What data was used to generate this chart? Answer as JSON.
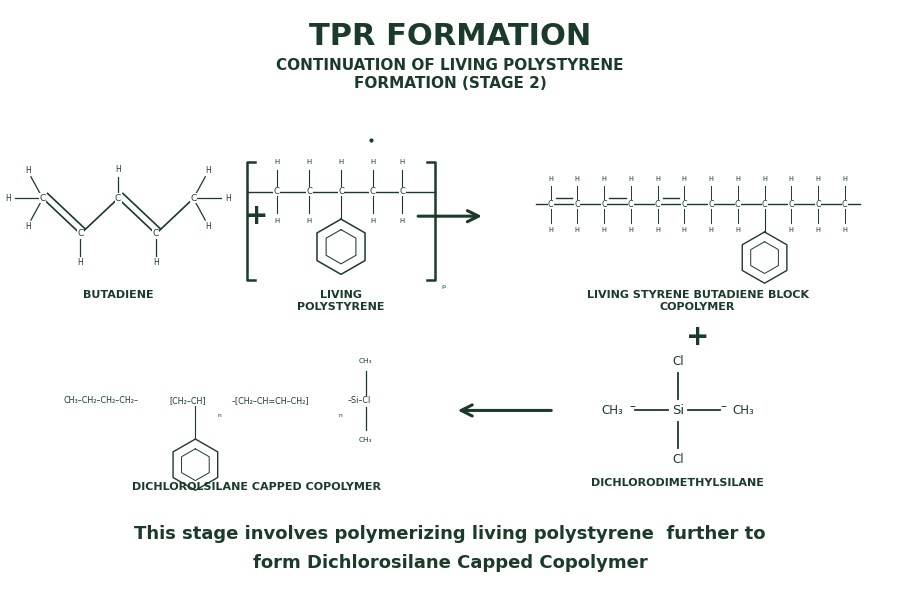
{
  "title": "TPR FORMATION",
  "subtitle": "CONTINUATION OF LIVING POLYSTYRENE\nFORMATION (STAGE 2)",
  "footer_line1": "This stage involves polymerizing living polystyrene  further to",
  "footer_line2": "form Dichlorosilane Capped Copolymer",
  "bg_color": "#ffffff",
  "dark_green": "#1a3a2a",
  "label_butadiene": "BUTADIENE",
  "label_living_poly": "LIVING\nPOLYSTYRENE",
  "label_living_sbc": "LIVING STYRENE BUTADIENE BLOCK\nCOPOLYMER",
  "label_dichlorosilane_capped": "DICHLOROLSILANE CAPPED COPOLYMER",
  "label_dichlorodimethylsilane": "DICHLORODIMETHYLSILANE"
}
